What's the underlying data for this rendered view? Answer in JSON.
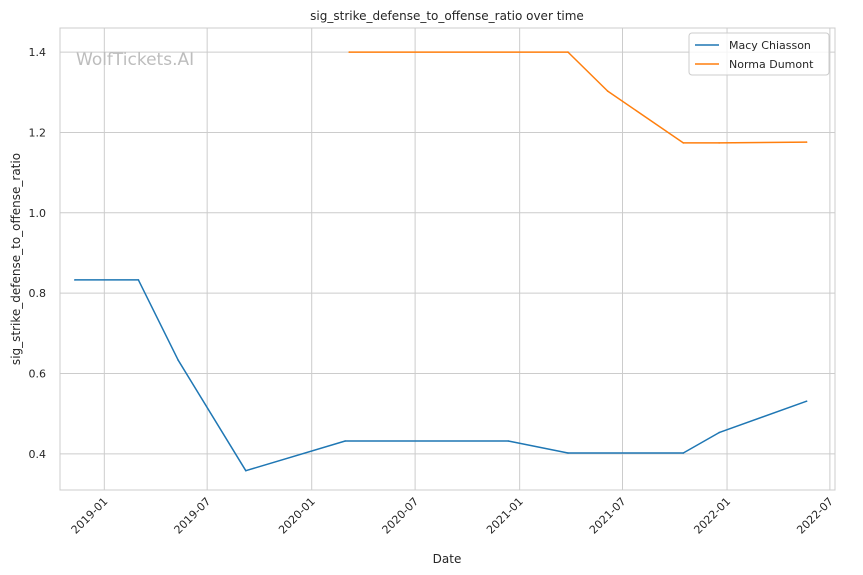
{
  "watermark": "WolfTickets.AI",
  "chart_data": {
    "type": "line",
    "title": "sig_strike_defense_to_offense_ratio over time",
    "xlabel": "Date",
    "ylabel": "sig_strike_defense_to_offense_ratio",
    "x_axis": "date",
    "xlim": [
      "2018-10-15",
      "2022-07-10"
    ],
    "ylim": [
      0.31,
      1.46
    ],
    "x_ticks": [
      "2019-01",
      "2019-07",
      "2020-01",
      "2020-07",
      "2021-01",
      "2021-07",
      "2022-01",
      "2022-07"
    ],
    "y_ticks": [
      "0.4",
      "0.6",
      "0.8",
      "1.0",
      "1.2",
      "1.4"
    ],
    "y_tick_values": [
      0.4,
      0.6,
      0.8,
      1.0,
      1.2,
      1.4
    ],
    "grid": true,
    "legend_position": "top-right",
    "series": [
      {
        "name": "Macy Chiasson",
        "color": "#1f77b4",
        "points": [
          {
            "x": "2018-11-10",
            "y": 0.833
          },
          {
            "x": "2019-03-02",
            "y": 0.833
          },
          {
            "x": "2019-05-11",
            "y": 0.633
          },
          {
            "x": "2019-09-07",
            "y": 0.358
          },
          {
            "x": "2020-02-29",
            "y": 0.432
          },
          {
            "x": "2020-12-12",
            "y": 0.432
          },
          {
            "x": "2021-03-27",
            "y": 0.402
          },
          {
            "x": "2021-10-16",
            "y": 0.402
          },
          {
            "x": "2021-12-18",
            "y": 0.453
          },
          {
            "x": "2022-05-21",
            "y": 0.531
          }
        ]
      },
      {
        "name": "Norma Dumont",
        "color": "#ff7f0e",
        "points": [
          {
            "x": "2020-03-07",
            "y": 1.4
          },
          {
            "x": "2021-03-27",
            "y": 1.4
          },
          {
            "x": "2021-06-05",
            "y": 1.303
          },
          {
            "x": "2021-10-16",
            "y": 1.174
          },
          {
            "x": "2021-12-18",
            "y": 1.174
          },
          {
            "x": "2022-05-21",
            "y": 1.176
          }
        ]
      }
    ]
  }
}
